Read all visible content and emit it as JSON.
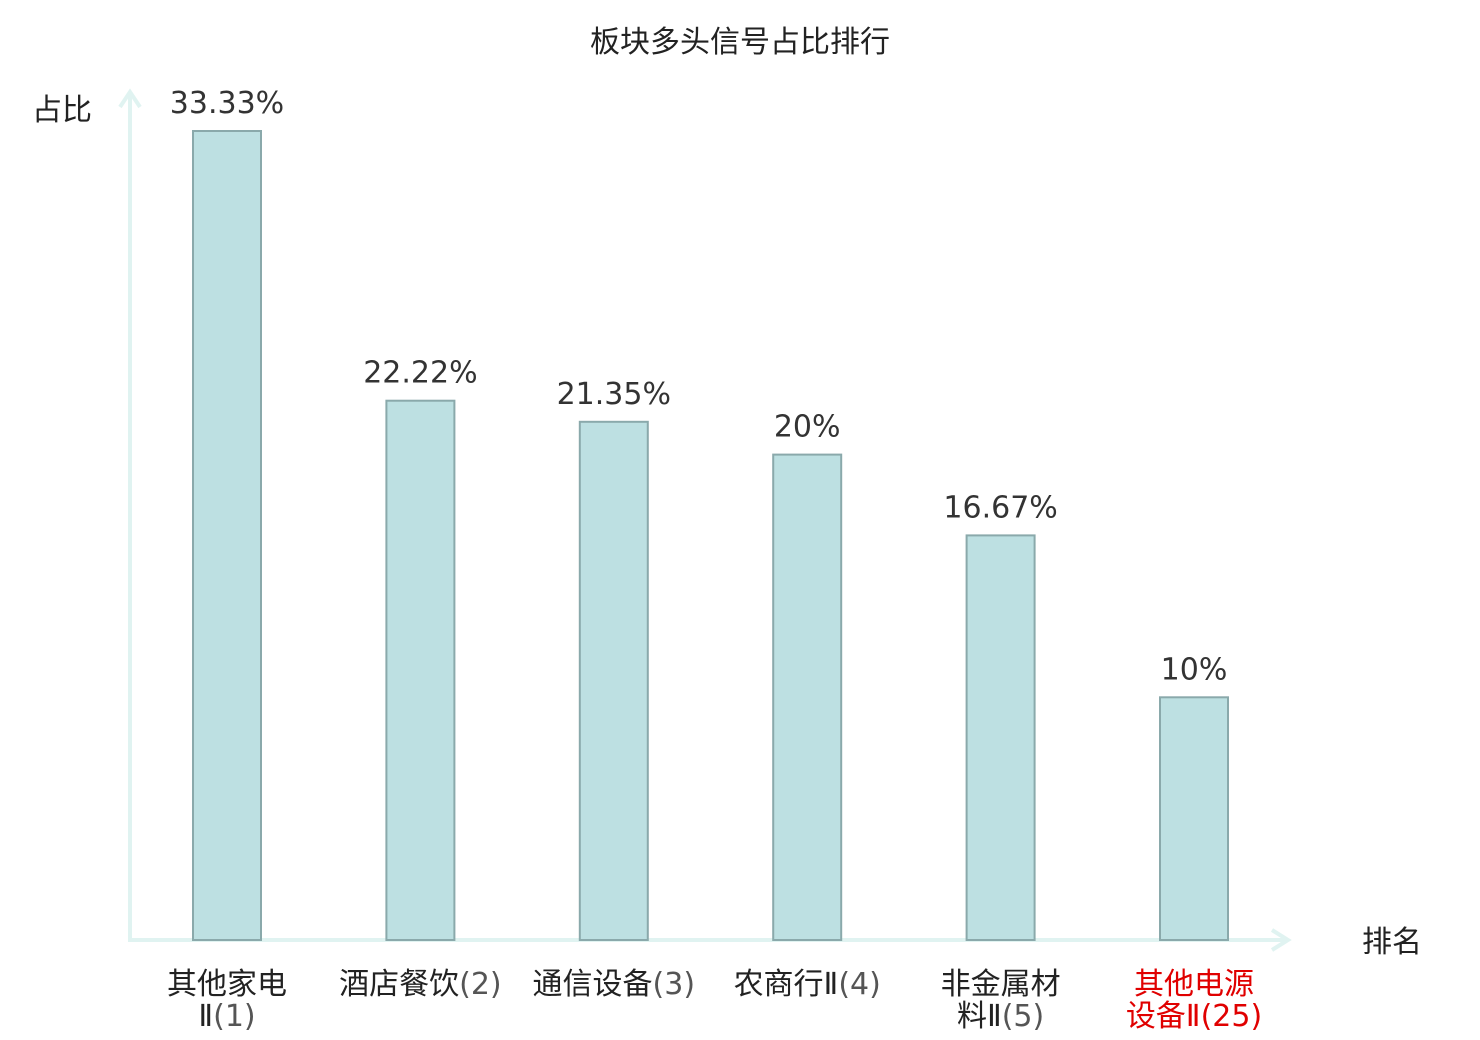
{
  "chart_data": {
    "type": "bar",
    "title": "板块多头信号占比排行",
    "ylabel": "占比",
    "xlabel": "排名",
    "ylim": [
      0,
      33.33
    ],
    "grid": false,
    "categories": [
      {
        "line1": "其他家电",
        "line2": "Ⅱ",
        "rank": "(1)",
        "highlight": false
      },
      {
        "line1": "酒店餐饮",
        "line2": "",
        "rank": "(2)",
        "highlight": false
      },
      {
        "line1": "通信设备",
        "line2": "",
        "rank": "(3)",
        "highlight": false
      },
      {
        "line1": "农商行Ⅱ",
        "line2": "",
        "rank": "(4)",
        "highlight": false
      },
      {
        "line1": "非金属材",
        "line2": "料Ⅱ",
        "rank": "(5)",
        "highlight": false
      },
      {
        "line1": "其他电源",
        "line2": "设备Ⅱ",
        "rank": "(25)",
        "highlight": true
      }
    ],
    "values": [
      33.33,
      22.22,
      21.35,
      20,
      16.67,
      10
    ],
    "value_labels": [
      "33.33%",
      "22.22%",
      "21.35%",
      "20%",
      "16.67%",
      "10%"
    ]
  },
  "colors": {
    "bar_fill": "#bde0e2",
    "bar_stroke": "#8aa9ab",
    "axis": "#e0f3f1",
    "text": "#222222",
    "rank_text": "#555555",
    "highlight": "#e00000"
  }
}
